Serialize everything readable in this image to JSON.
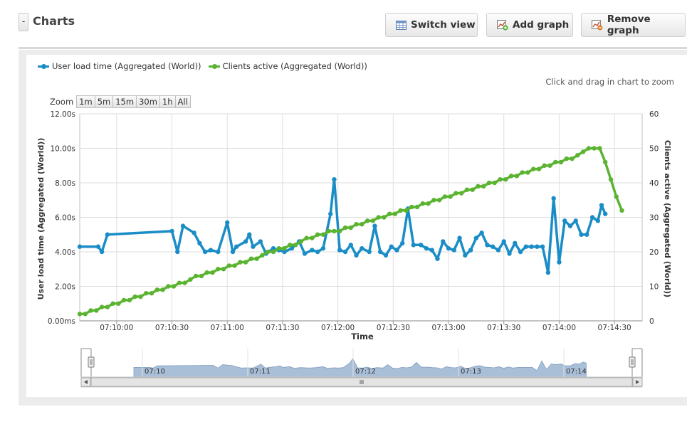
{
  "header": {
    "collapse_label": "-",
    "title": "Charts",
    "switch_view": "Switch view",
    "add_graph": "Add graph",
    "remove_graph": "Remove graph"
  },
  "chart_panel": {
    "zoom_hint": "Click and drag in chart to zoom",
    "zoom_label": "Zoom",
    "zoom_buttons": [
      "1m",
      "5m",
      "15m",
      "30m",
      "1h",
      "All"
    ],
    "navigator_labels": [
      "07:10",
      "07:11",
      "07:12",
      "07:13",
      "07:14"
    ]
  },
  "colors": {
    "series_load": "#1a8dc6",
    "series_clients": "#5bb431",
    "navigator_fill": "#a9bfd8"
  },
  "chart_data": {
    "type": "line",
    "xlabel": "Time",
    "x_ticks": [
      "07:10:00",
      "07:10:30",
      "07:11:00",
      "07:11:30",
      "07:12:00",
      "07:12:30",
      "07:13:00",
      "07:13:30",
      "07:14:00",
      "07:14:30"
    ],
    "x_range_seconds_after_0709_40": [
      0,
      305
    ],
    "y_left": {
      "label": "User load time (Aggregated (World))",
      "ticks": [
        "0.00ms",
        "2.00s",
        "4.00s",
        "6.00s",
        "8.00s",
        "10.00s",
        "12.00s"
      ],
      "range": [
        0,
        12
      ]
    },
    "y_right": {
      "label": "Clients active (Aggregated (World))",
      "ticks": [
        "0",
        "10",
        "20",
        "30",
        "40",
        "50",
        "60"
      ],
      "range": [
        0,
        60
      ]
    },
    "grid": true,
    "legend_position": "top-left",
    "series": [
      {
        "name": "User load time (Aggregated (World))",
        "axis": "left",
        "unit": "s",
        "points": [
          [
            "07:09:40",
            4.3
          ],
          [
            "07:09:50",
            4.3
          ],
          [
            "07:09:52",
            4.0
          ],
          [
            "07:09:55",
            5.0
          ],
          [
            "07:10:30",
            5.2
          ],
          [
            "07:10:33",
            4.0
          ],
          [
            "07:10:36",
            5.5
          ],
          [
            "07:10:42",
            5.1
          ],
          [
            "07:10:45",
            4.5
          ],
          [
            "07:10:48",
            4.0
          ],
          [
            "07:10:51",
            4.1
          ],
          [
            "07:10:55",
            4.0
          ],
          [
            "07:11:00",
            5.7
          ],
          [
            "07:11:03",
            4.0
          ],
          [
            "07:11:05",
            4.3
          ],
          [
            "07:11:10",
            4.6
          ],
          [
            "07:11:12",
            5.0
          ],
          [
            "07:11:14",
            4.3
          ],
          [
            "07:11:18",
            4.6
          ],
          [
            "07:11:21",
            3.9
          ],
          [
            "07:11:25",
            4.2
          ],
          [
            "07:11:28",
            4.1
          ],
          [
            "07:11:31",
            4.0
          ],
          [
            "07:11:35",
            4.2
          ],
          [
            "07:11:39",
            4.6
          ],
          [
            "07:11:42",
            3.9
          ],
          [
            "07:11:46",
            4.1
          ],
          [
            "07:11:49",
            4.0
          ],
          [
            "07:11:52",
            4.2
          ],
          [
            "07:11:56",
            6.2
          ],
          [
            "07:11:58",
            8.2
          ],
          [
            "07:12:01",
            4.1
          ],
          [
            "07:12:04",
            4.0
          ],
          [
            "07:12:07",
            4.4
          ],
          [
            "07:12:10",
            3.8
          ],
          [
            "07:12:13",
            4.2
          ],
          [
            "07:12:17",
            4.0
          ],
          [
            "07:12:20",
            5.5
          ],
          [
            "07:12:23",
            4.0
          ],
          [
            "07:12:26",
            3.8
          ],
          [
            "07:12:29",
            4.3
          ],
          [
            "07:12:32",
            4.1
          ],
          [
            "07:12:35",
            4.5
          ],
          [
            "07:12:38",
            6.5
          ],
          [
            "07:12:41",
            4.4
          ],
          [
            "07:12:45",
            4.4
          ],
          [
            "07:12:48",
            4.2
          ],
          [
            "07:12:51",
            4.1
          ],
          [
            "07:12:54",
            3.6
          ],
          [
            "07:12:57",
            4.6
          ],
          [
            "07:13:00",
            4.2
          ],
          [
            "07:13:03",
            4.1
          ],
          [
            "07:13:06",
            4.8
          ],
          [
            "07:13:09",
            3.8
          ],
          [
            "07:13:12",
            4.1
          ],
          [
            "07:13:15",
            4.8
          ],
          [
            "07:13:18",
            5.1
          ],
          [
            "07:13:21",
            4.4
          ],
          [
            "07:13:24",
            4.3
          ],
          [
            "07:13:27",
            4.1
          ],
          [
            "07:13:30",
            4.6
          ],
          [
            "07:13:33",
            3.9
          ],
          [
            "07:13:36",
            4.5
          ],
          [
            "07:13:39",
            4.0
          ],
          [
            "07:13:42",
            4.3
          ],
          [
            "07:13:45",
            4.3
          ],
          [
            "07:13:48",
            4.3
          ],
          [
            "07:13:51",
            4.3
          ],
          [
            "07:13:54",
            2.8
          ],
          [
            "07:13:57",
            7.1
          ],
          [
            "07:14:00",
            3.4
          ],
          [
            "07:14:03",
            5.8
          ],
          [
            "07:14:06",
            5.5
          ],
          [
            "07:14:09",
            5.8
          ],
          [
            "07:14:12",
            5.0
          ],
          [
            "07:14:15",
            5.0
          ],
          [
            "07:14:18",
            6.0
          ],
          [
            "07:14:21",
            5.8
          ],
          [
            "07:14:23",
            6.7
          ],
          [
            "07:14:25",
            6.2
          ]
        ]
      },
      {
        "name": "Clients active (Aggregated (World))",
        "axis": "right",
        "unit": "clients",
        "points": [
          [
            "07:09:40",
            2
          ],
          [
            "07:09:43",
            2
          ],
          [
            "07:09:46",
            3
          ],
          [
            "07:09:49",
            3
          ],
          [
            "07:09:52",
            4
          ],
          [
            "07:09:55",
            4
          ],
          [
            "07:09:58",
            5
          ],
          [
            "07:10:01",
            5
          ],
          [
            "07:10:04",
            6
          ],
          [
            "07:10:07",
            6
          ],
          [
            "07:10:10",
            7
          ],
          [
            "07:10:13",
            7
          ],
          [
            "07:10:16",
            8
          ],
          [
            "07:10:19",
            8
          ],
          [
            "07:10:22",
            9
          ],
          [
            "07:10:25",
            9
          ],
          [
            "07:10:28",
            10
          ],
          [
            "07:10:31",
            10
          ],
          [
            "07:10:34",
            11
          ],
          [
            "07:10:37",
            11
          ],
          [
            "07:10:40",
            12
          ],
          [
            "07:10:43",
            13
          ],
          [
            "07:10:46",
            13
          ],
          [
            "07:10:49",
            14
          ],
          [
            "07:10:52",
            14
          ],
          [
            "07:10:55",
            15
          ],
          [
            "07:10:58",
            15
          ],
          [
            "07:11:01",
            16
          ],
          [
            "07:11:04",
            16
          ],
          [
            "07:11:07",
            17
          ],
          [
            "07:11:10",
            17
          ],
          [
            "07:11:13",
            18
          ],
          [
            "07:11:16",
            18
          ],
          [
            "07:11:19",
            19
          ],
          [
            "07:11:22",
            20
          ],
          [
            "07:11:25",
            20
          ],
          [
            "07:11:28",
            21
          ],
          [
            "07:11:31",
            21
          ],
          [
            "07:11:34",
            22
          ],
          [
            "07:11:37",
            22
          ],
          [
            "07:11:40",
            23
          ],
          [
            "07:11:43",
            24
          ],
          [
            "07:11:46",
            24
          ],
          [
            "07:11:49",
            25
          ],
          [
            "07:11:52",
            25
          ],
          [
            "07:11:55",
            26
          ],
          [
            "07:11:58",
            26
          ],
          [
            "07:12:01",
            26
          ],
          [
            "07:12:04",
            27
          ],
          [
            "07:12:07",
            27
          ],
          [
            "07:12:10",
            28
          ],
          [
            "07:12:13",
            28
          ],
          [
            "07:12:16",
            29
          ],
          [
            "07:12:19",
            29
          ],
          [
            "07:12:22",
            30
          ],
          [
            "07:12:25",
            30
          ],
          [
            "07:12:28",
            31
          ],
          [
            "07:12:31",
            31
          ],
          [
            "07:12:34",
            32
          ],
          [
            "07:12:37",
            32
          ],
          [
            "07:12:40",
            33
          ],
          [
            "07:12:43",
            33
          ],
          [
            "07:12:46",
            34
          ],
          [
            "07:12:49",
            34
          ],
          [
            "07:12:52",
            35
          ],
          [
            "07:12:55",
            35
          ],
          [
            "07:12:58",
            36
          ],
          [
            "07:13:01",
            36
          ],
          [
            "07:13:04",
            37
          ],
          [
            "07:13:07",
            37
          ],
          [
            "07:13:10",
            38
          ],
          [
            "07:13:13",
            38
          ],
          [
            "07:13:16",
            39
          ],
          [
            "07:13:19",
            39
          ],
          [
            "07:13:22",
            40
          ],
          [
            "07:13:25",
            40
          ],
          [
            "07:13:28",
            41
          ],
          [
            "07:13:31",
            41
          ],
          [
            "07:13:34",
            42
          ],
          [
            "07:13:37",
            42
          ],
          [
            "07:13:40",
            43
          ],
          [
            "07:13:43",
            43
          ],
          [
            "07:13:46",
            44
          ],
          [
            "07:13:49",
            44
          ],
          [
            "07:13:52",
            45
          ],
          [
            "07:13:55",
            45
          ],
          [
            "07:13:58",
            46
          ],
          [
            "07:14:01",
            46
          ],
          [
            "07:14:04",
            47
          ],
          [
            "07:14:07",
            47
          ],
          [
            "07:14:10",
            48
          ],
          [
            "07:14:13",
            49
          ],
          [
            "07:14:16",
            50
          ],
          [
            "07:14:19",
            50
          ],
          [
            "07:14:22",
            50
          ],
          [
            "07:14:25",
            46
          ],
          [
            "07:14:28",
            41
          ],
          [
            "07:14:31",
            36
          ],
          [
            "07:14:34",
            32
          ]
        ]
      }
    ]
  }
}
